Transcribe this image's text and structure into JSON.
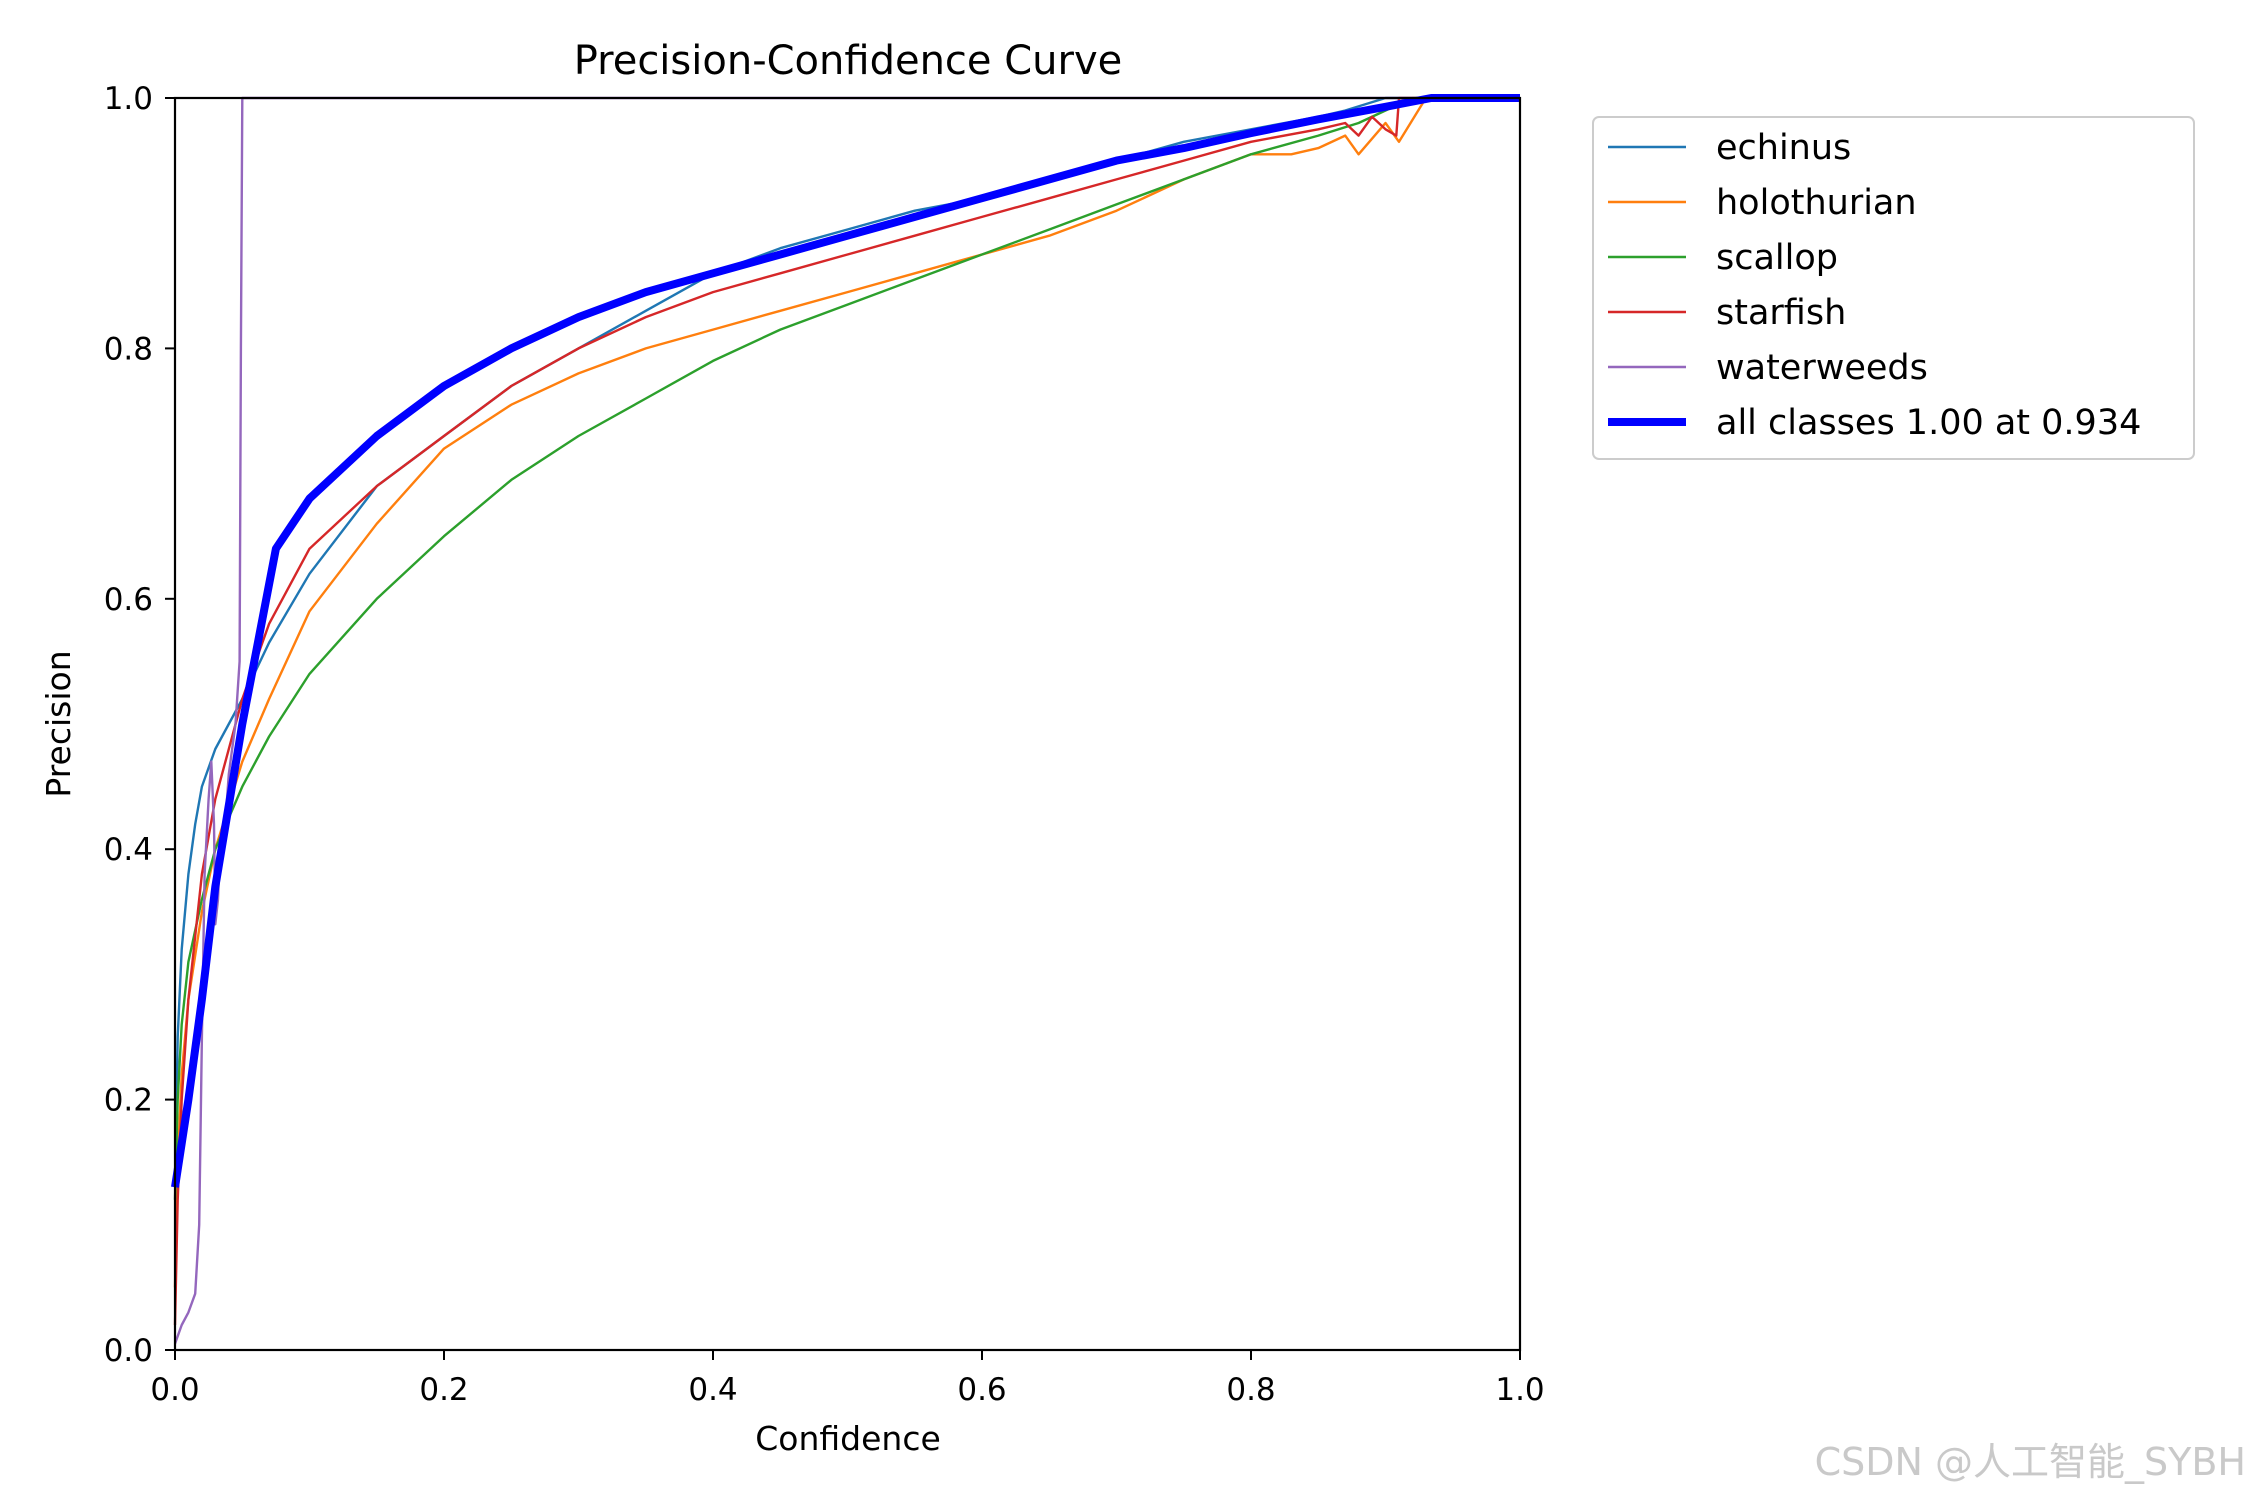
{
  "chart_data": {
    "type": "line",
    "title": "Precision-Confidence Curve",
    "xlabel": "Confidence",
    "ylabel": "Precision",
    "xlim": [
      0,
      1
    ],
    "ylim": [
      0,
      1
    ],
    "xticks": [
      "0.0",
      "0.2",
      "0.4",
      "0.6",
      "0.8",
      "1.0"
    ],
    "yticks": [
      "0.0",
      "0.2",
      "0.4",
      "0.6",
      "0.8",
      "1.0"
    ],
    "legend_position": "outside-top-right",
    "series": [
      {
        "name": "echinus",
        "color": "#1f77b4",
        "width": "thin",
        "x": [
          0,
          0.002,
          0.005,
          0.01,
          0.015,
          0.02,
          0.03,
          0.04,
          0.05,
          0.07,
          0.1,
          0.15,
          0.2,
          0.25,
          0.3,
          0.35,
          0.4,
          0.45,
          0.5,
          0.55,
          0.6,
          0.65,
          0.7,
          0.75,
          0.8,
          0.85,
          0.87,
          0.9,
          0.93,
          1.0
        ],
        "y": [
          0.13,
          0.25,
          0.32,
          0.38,
          0.42,
          0.45,
          0.48,
          0.5,
          0.52,
          0.565,
          0.62,
          0.69,
          0.73,
          0.77,
          0.8,
          0.83,
          0.86,
          0.88,
          0.895,
          0.91,
          0.92,
          0.935,
          0.95,
          0.965,
          0.975,
          0.985,
          0.99,
          1.0,
          1.0,
          1.0
        ]
      },
      {
        "name": "holothurian",
        "color": "#ff7f0e",
        "width": "thin",
        "x": [
          0,
          0.002,
          0.005,
          0.01,
          0.02,
          0.03,
          0.05,
          0.07,
          0.1,
          0.15,
          0.2,
          0.25,
          0.3,
          0.35,
          0.4,
          0.45,
          0.5,
          0.55,
          0.6,
          0.65,
          0.7,
          0.75,
          0.8,
          0.83,
          0.85,
          0.87,
          0.88,
          0.9,
          0.91,
          0.93,
          1.0
        ],
        "y": [
          0.05,
          0.15,
          0.22,
          0.28,
          0.35,
          0.4,
          0.47,
          0.52,
          0.59,
          0.66,
          0.72,
          0.755,
          0.78,
          0.8,
          0.815,
          0.83,
          0.845,
          0.86,
          0.875,
          0.89,
          0.91,
          0.935,
          0.955,
          0.955,
          0.96,
          0.97,
          0.955,
          0.98,
          0.965,
          1.0,
          1.0
        ]
      },
      {
        "name": "scallop",
        "color": "#2ca02c",
        "width": "thin",
        "x": [
          0,
          0.002,
          0.005,
          0.01,
          0.02,
          0.03,
          0.05,
          0.07,
          0.1,
          0.15,
          0.2,
          0.25,
          0.3,
          0.35,
          0.4,
          0.45,
          0.5,
          0.55,
          0.6,
          0.65,
          0.7,
          0.75,
          0.8,
          0.85,
          0.88,
          0.9,
          0.92,
          1.0
        ],
        "y": [
          0.12,
          0.2,
          0.26,
          0.31,
          0.36,
          0.4,
          0.45,
          0.49,
          0.54,
          0.6,
          0.65,
          0.695,
          0.73,
          0.76,
          0.79,
          0.815,
          0.835,
          0.855,
          0.875,
          0.895,
          0.915,
          0.935,
          0.955,
          0.97,
          0.98,
          0.99,
          1.0,
          1.0
        ]
      },
      {
        "name": "starfish",
        "color": "#d62728",
        "width": "thin",
        "x": [
          0,
          0.002,
          0.005,
          0.01,
          0.02,
          0.03,
          0.05,
          0.07,
          0.1,
          0.15,
          0.2,
          0.25,
          0.3,
          0.35,
          0.4,
          0.45,
          0.5,
          0.55,
          0.6,
          0.65,
          0.7,
          0.75,
          0.8,
          0.85,
          0.87,
          0.88,
          0.89,
          0.9,
          0.908,
          0.91,
          0.93,
          1.0
        ],
        "y": [
          0.02,
          0.12,
          0.2,
          0.28,
          0.38,
          0.44,
          0.52,
          0.58,
          0.64,
          0.69,
          0.73,
          0.77,
          0.8,
          0.825,
          0.845,
          0.86,
          0.875,
          0.89,
          0.905,
          0.92,
          0.935,
          0.95,
          0.965,
          0.975,
          0.98,
          0.97,
          0.985,
          0.975,
          0.97,
          1.0,
          1.0,
          1.0
        ]
      },
      {
        "name": "waterweeds",
        "color": "#9467bd",
        "width": "thin",
        "x": [
          0,
          0.005,
          0.01,
          0.015,
          0.018,
          0.02,
          0.022,
          0.025,
          0.027,
          0.029,
          0.03,
          0.032,
          0.034,
          0.036,
          0.04,
          0.045,
          0.048,
          0.049,
          0.05,
          1.0
        ],
        "y": [
          0.005,
          0.02,
          0.03,
          0.045,
          0.1,
          0.25,
          0.38,
          0.44,
          0.47,
          0.42,
          0.34,
          0.36,
          0.41,
          0.4,
          0.46,
          0.5,
          0.55,
          0.8,
          1.0,
          1.0
        ]
      },
      {
        "name": "all classes 1.00 at 0.934",
        "color": "#0000ff",
        "width": "thick",
        "x": [
          0,
          0.01,
          0.02,
          0.03,
          0.05,
          0.075,
          0.1,
          0.15,
          0.2,
          0.25,
          0.3,
          0.35,
          0.4,
          0.45,
          0.5,
          0.55,
          0.6,
          0.65,
          0.7,
          0.75,
          0.8,
          0.85,
          0.9,
          0.934,
          1.0
        ],
        "y": [
          0.13,
          0.2,
          0.28,
          0.37,
          0.5,
          0.64,
          0.68,
          0.73,
          0.77,
          0.8,
          0.825,
          0.845,
          0.86,
          0.875,
          0.89,
          0.905,
          0.92,
          0.935,
          0.95,
          0.96,
          0.972,
          0.983,
          0.993,
          1.0,
          1.0
        ]
      }
    ]
  },
  "watermark": "CSDN @人工智能_SYBH"
}
